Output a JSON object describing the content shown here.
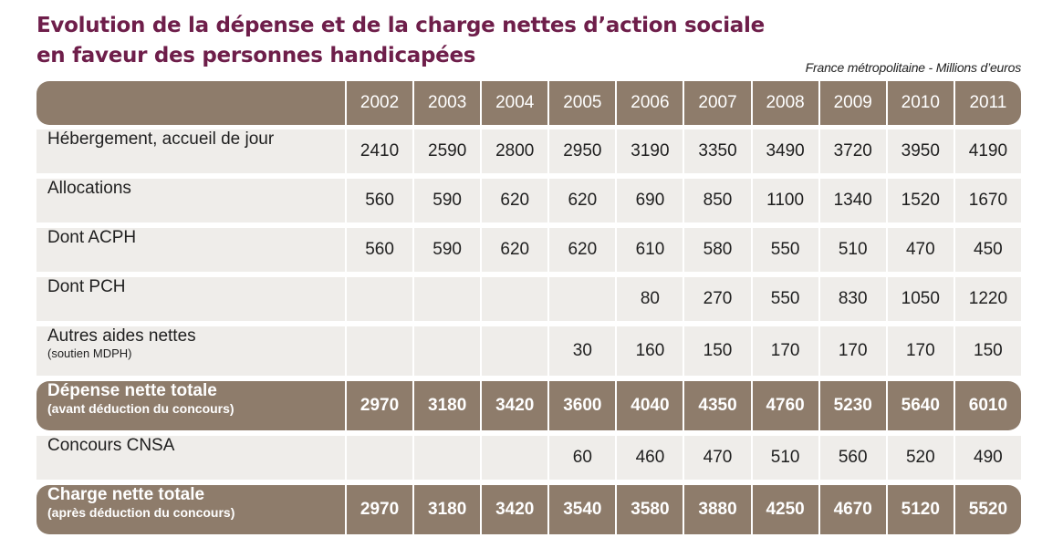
{
  "title_line1": "Evolution de la dépense et de la charge nettes d’action sociale",
  "title_line2": "en faveur des personnes handicapées",
  "subtitle": "France métropolitaine - Millions d’euros",
  "chart_data": {
    "type": "table",
    "title": "Evolution de la dépense et de la charge nettes d’action sociale en faveur des personnes handicapées",
    "unit": "Millions d’euros",
    "columns": [
      "2002",
      "2003",
      "2004",
      "2005",
      "2006",
      "2007",
      "2008",
      "2009",
      "2010",
      "2011"
    ],
    "rows": [
      {
        "label": "Hébergement, accueil de jour",
        "sublabel": "",
        "style": "light",
        "values": [
          "2410",
          "2590",
          "2800",
          "2950",
          "3190",
          "3350",
          "3490",
          "3720",
          "3950",
          "4190"
        ]
      },
      {
        "label": "Allocations",
        "sublabel": "",
        "style": "light",
        "values": [
          "560",
          "590",
          "620",
          "620",
          "690",
          "850",
          "1100",
          "1340",
          "1520",
          "1670"
        ]
      },
      {
        "label": "Dont ACPH",
        "sublabel": "",
        "style": "light",
        "values": [
          "560",
          "590",
          "620",
          "620",
          "610",
          "580",
          "550",
          "510",
          "470",
          "450"
        ]
      },
      {
        "label": "Dont PCH",
        "sublabel": "",
        "style": "light",
        "values": [
          "",
          "",
          "",
          "",
          "80",
          "270",
          "550",
          "830",
          "1050",
          "1220"
        ]
      },
      {
        "label": "Autres aides nettes",
        "sublabel": "(soutien MDPH)",
        "style": "light",
        "values": [
          "",
          "",
          "",
          "30",
          "160",
          "150",
          "170",
          "170",
          "170",
          "150"
        ]
      },
      {
        "label": "Dépense nette totale",
        "sublabel": "(avant déduction du concours)",
        "style": "dark",
        "values": [
          "2970",
          "3180",
          "3420",
          "3600",
          "4040",
          "4350",
          "4760",
          "5230",
          "5640",
          "6010"
        ]
      },
      {
        "label": "Concours CNSA",
        "sublabel": "",
        "style": "light",
        "values": [
          "",
          "",
          "",
          "60",
          "460",
          "470",
          "510",
          "560",
          "520",
          "490"
        ]
      },
      {
        "label": "Charge nette totale",
        "sublabel": "(après déduction du concours)",
        "style": "dark",
        "values": [
          "2970",
          "3180",
          "3420",
          "3540",
          "3580",
          "3880",
          "4250",
          "4670",
          "5120",
          "5520"
        ]
      }
    ]
  }
}
